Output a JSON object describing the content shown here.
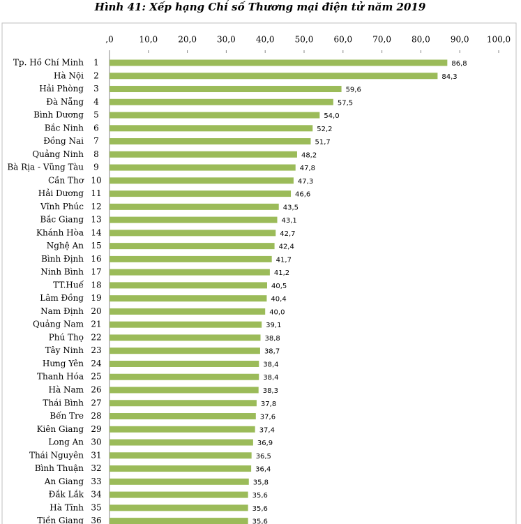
{
  "chart_data": {
    "type": "barh",
    "title": "Hình 41: Xếp hạng Chỉ số Thương mại điện tử năm 2019",
    "categories": [
      "Tp. Hồ Chí Minh",
      "Hà Nội",
      "Hải Phòng",
      "Đà Nẵng",
      "Bình Dương",
      "Bắc Ninh",
      "Đồng Nai",
      "Quảng Ninh",
      "Bà Rịa - Vũng Tàu",
      "Cần Thơ",
      "Hải Dương",
      "Vĩnh Phúc",
      "Bắc Giang",
      "Khánh Hòa",
      "Nghệ An",
      "Bình Định",
      "Ninh Bình",
      "TT.Huế",
      "Lâm Đồng",
      "Nam Định",
      "Quảng Nam",
      "Phú Thọ",
      "Tây Ninh",
      "Hưng Yên",
      "Thanh Hóa",
      "Hà Nam",
      "Thái Bình",
      "Bến Tre",
      "Kiên Giang",
      "Long An",
      "Thái Nguyên",
      "Bình Thuận",
      "An Giang",
      "Đắk Lắk",
      "Hà Tĩnh",
      "Tiền Giang"
    ],
    "ranks": [
      1,
      2,
      3,
      4,
      5,
      6,
      7,
      8,
      9,
      10,
      11,
      12,
      13,
      14,
      15,
      16,
      17,
      18,
      19,
      20,
      21,
      22,
      23,
      24,
      25,
      26,
      27,
      28,
      29,
      30,
      31,
      32,
      33,
      34,
      35,
      36
    ],
    "values": [
      86.8,
      84.3,
      59.6,
      57.5,
      54.0,
      52.2,
      51.7,
      48.2,
      47.8,
      47.3,
      46.6,
      43.5,
      43.1,
      42.7,
      42.4,
      41.7,
      41.2,
      40.5,
      40.4,
      40.0,
      39.1,
      38.8,
      38.7,
      38.4,
      38.4,
      38.3,
      37.8,
      37.6,
      37.4,
      36.9,
      36.5,
      36.4,
      35.8,
      35.6,
      35.6,
      35.6
    ],
    "value_labels": [
      "86,8",
      "84,3",
      "59,6",
      "57,5",
      "54,0",
      "52,2",
      "51,7",
      "48,2",
      "47,8",
      "47,3",
      "46,6",
      "43,5",
      "43,1",
      "42,7",
      "42,4",
      "41,7",
      "41,2",
      "40,5",
      "40,4",
      "40,0",
      "39,1",
      "38,8",
      "38,7",
      "38,4",
      "38,4",
      "38,3",
      "37,8",
      "37,6",
      "37,4",
      "36,9",
      "36,5",
      "36,4",
      "35,8",
      "35,6",
      "35,6",
      "35,6"
    ],
    "color": "#9bbb59",
    "xlim": [
      0,
      100
    ],
    "xticks": [
      {
        "value": 0,
        "label": ",0"
      },
      {
        "value": 10,
        "label": "10,0"
      },
      {
        "value": 20,
        "label": "20,0"
      },
      {
        "value": 30,
        "label": "30,0"
      },
      {
        "value": 40,
        "label": "40,0"
      },
      {
        "value": 50,
        "label": "50,0"
      },
      {
        "value": 60,
        "label": "60,0"
      },
      {
        "value": 70,
        "label": "70,0"
      },
      {
        "value": 80,
        "label": "80,0"
      },
      {
        "value": 90,
        "label": "90,0"
      },
      {
        "value": 100,
        "label": "100,0"
      }
    ],
    "grid": false
  }
}
